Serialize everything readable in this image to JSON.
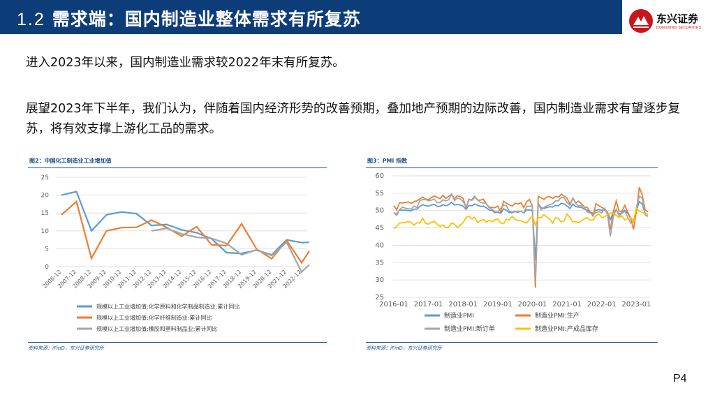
{
  "header": {
    "section_number": "1.2",
    "title": "需求端：国内制造业整体需求有所复苏"
  },
  "logo": {
    "name_cn": "东兴证券",
    "name_en": "DONGXING SECURITIES",
    "colors": {
      "red": "#c8161d",
      "navy": "#0d3d78"
    }
  },
  "body": {
    "paragraph_1": "进入2023年以来，国内制造业需求较2022年末有所复苏。",
    "paragraph_2": "展望2023年下半年，我们认为，伴随着国内经济形势的改善预期，叠加地产预期的边际改善，国内制造业需求有望逐步复苏，将有效支撑上游化工品的需求。"
  },
  "figure_left": {
    "caption": "图2：中国化工制造业工业增加值",
    "source": "资料来源：iFinD，东兴证券研究所"
  },
  "figure_right": {
    "caption": "图3：PMI 指数",
    "source": "资料来源：iFinD，东兴证券研究所"
  },
  "page_number": "P4",
  "chart_data": [
    {
      "type": "line",
      "title": "图2：中国化工制造业工业增加值",
      "ylim": [
        0,
        25
      ],
      "yticks": [
        0,
        5,
        10,
        15,
        20,
        25
      ],
      "x": [
        "2006-12",
        "2007-12",
        "2008-12",
        "2009-12",
        "2010-12",
        "2011-12",
        "2012-12",
        "2013-12",
        "2014-12",
        "2015-12",
        "2016-12",
        "2017-12",
        "2018-12",
        "2019-12",
        "2020-12",
        "2021-12",
        "2022-12"
      ],
      "grid": true,
      "legend_position": "bottom",
      "series": [
        {
          "name": "规模以上工业增加值:化学原料和化学制品制造业:累计同比",
          "color": "#5b9bd5",
          "points": [
            [
              0,
              20
            ],
            [
              1,
              21
            ],
            [
              2,
              10
            ],
            [
              3,
              14.5
            ],
            [
              4,
              15.3
            ],
            [
              5,
              14.8
            ],
            [
              6,
              11.5
            ],
            [
              7,
              11.8
            ],
            [
              8,
              10.3
            ],
            [
              9,
              9.5
            ],
            [
              10,
              7.8
            ],
            [
              11,
              3.9
            ],
            [
              12,
              3.7
            ],
            [
              13,
              4.6
            ],
            [
              14,
              3.3
            ],
            [
              15,
              7.5
            ],
            [
              16,
              6.7
            ],
            [
              16.5,
              6.8
            ]
          ]
        },
        {
          "name": "规模以上工业增加值:化学纤维制造业:累计同比",
          "color": "#ed7d31",
          "points": [
            [
              0,
              14.5
            ],
            [
              1,
              18.2
            ],
            [
              2,
              2.3
            ],
            [
              3,
              10
            ],
            [
              4,
              10.9
            ],
            [
              5,
              11
            ],
            [
              6,
              13
            ],
            [
              7,
              11
            ],
            [
              8,
              8.5
            ],
            [
              9,
              11.2
            ],
            [
              10,
              6.1
            ],
            [
              11,
              5.9
            ],
            [
              12,
              12
            ],
            [
              13,
              4.9
            ],
            [
              14,
              2.2
            ],
            [
              15,
              7.3
            ],
            [
              16,
              1.1
            ],
            [
              16.5,
              4.3
            ]
          ]
        },
        {
          "name": "规模以上工业增加值:橡胶和塑料制品业:累计同比",
          "color": "#a5a5a5",
          "points": [
            [
              6,
              10
            ],
            [
              7,
              10.7
            ],
            [
              8,
              9.2
            ],
            [
              9,
              8.2
            ],
            [
              10,
              7.9
            ],
            [
              11,
              6.5
            ],
            [
              12,
              3.3
            ],
            [
              13,
              4.7
            ],
            [
              14,
              3.1
            ],
            [
              15,
              6.8
            ],
            [
              16,
              -1.5
            ],
            [
              16.5,
              0.5
            ]
          ]
        }
      ]
    },
    {
      "type": "line",
      "title": "图3：PMI 指数",
      "ylim": [
        25,
        60
      ],
      "yticks": [
        25,
        30,
        35,
        40,
        45,
        50,
        55,
        60
      ],
      "xticks": [
        "2016-01",
        "2017-01",
        "2018-01",
        "2019-01",
        "2020-01",
        "2021-01",
        "2022-01",
        "2023-01"
      ],
      "grid": true,
      "legend_position": "bottom",
      "series": [
        {
          "name": "制造业PMI",
          "color": "#5b9bd5",
          "values": [
            49.4,
            49,
            50.2,
            50.1,
            50.1,
            50,
            49.9,
            50.4,
            50.4,
            51.2,
            51.7,
            51.4,
            51.3,
            51.6,
            51.8,
            51.2,
            51.2,
            51.7,
            51.4,
            51.7,
            52.4,
            51.6,
            51.8,
            51.6,
            51.3,
            50.3,
            51.5,
            51.4,
            51.9,
            51.5,
            51.2,
            51.3,
            50.8,
            50.2,
            50,
            49.4,
            49.5,
            49.2,
            50.5,
            50.1,
            49.4,
            49.4,
            49.7,
            49.5,
            49.8,
            49.3,
            50.2,
            50.2,
            50,
            35.7,
            52,
            50.8,
            50.6,
            50.9,
            51.1,
            51,
            51.5,
            51.4,
            52.1,
            51.9,
            51.3,
            50.6,
            51.9,
            51.1,
            51,
            50.9,
            50.4,
            50.1,
            49.6,
            49.2,
            50.1,
            50.3,
            50.1,
            50.2,
            49.5,
            47.4,
            49.6,
            50.2,
            49,
            49.4,
            50.1,
            49.2,
            48,
            47,
            50.1,
            52.6,
            51.9,
            49.2,
            48.8
          ]
        },
        {
          "name": "制造业PMI:生产",
          "color": "#ed7d31",
          "values": [
            51.4,
            50.2,
            52.3,
            52.2,
            52.3,
            52.5,
            52.1,
            52.6,
            52.8,
            53.3,
            53.9,
            53.3,
            53.1,
            53.7,
            54.2,
            53.8,
            53.4,
            54.4,
            53.5,
            54.1,
            54.7,
            53.4,
            54.3,
            54,
            53.5,
            50.7,
            53.1,
            53.1,
            54.1,
            53,
            53,
            53.3,
            52,
            51,
            50.9,
            50.8,
            51.3,
            49.5,
            52.7,
            52.1,
            51.7,
            51.3,
            52.1,
            51.9,
            52.3,
            50.8,
            52.6,
            53.2,
            51.3,
            27.8,
            54.1,
            53.7,
            53.2,
            53.9,
            54,
            53.5,
            54,
            53.9,
            54.7,
            54.2,
            53.5,
            51.9,
            53.6,
            52.2,
            52.7,
            51.9,
            51,
            50.9,
            49.5,
            48.4,
            52,
            51.4,
            50.9,
            50.4,
            49.5,
            44.4,
            49.7,
            52.8,
            49.8,
            49.8,
            51.5,
            49.6,
            47.8,
            44.6,
            49.8,
            56.7,
            54.6,
            50.2,
            49.6
          ]
        },
        {
          "name": "制造业PMI:新订单",
          "color": "#a5a5a5",
          "values": [
            49.5,
            48.6,
            50.2,
            51,
            50.7,
            50.5,
            50.4,
            51.3,
            50.9,
            52.8,
            53.2,
            53.2,
            52.8,
            53,
            53.3,
            52.3,
            52.3,
            53.1,
            52.8,
            53.1,
            54.8,
            52.9,
            53.6,
            53.4,
            52.6,
            51,
            53.3,
            52.9,
            53.8,
            53.2,
            52.3,
            52.2,
            52,
            50.8,
            50.4,
            49.7,
            49.6,
            50.6,
            51.6,
            51.4,
            49.8,
            49.6,
            49.8,
            49.7,
            49.8,
            49.3,
            51.3,
            51.2,
            51.4,
            29.3,
            52,
            50.2,
            50.9,
            51.4,
            51.7,
            52,
            52.8,
            52.8,
            53.9,
            53.6,
            52.3,
            51.5,
            53.6,
            52,
            51.3,
            51.5,
            50.9,
            49.6,
            49.3,
            48.8,
            49.4,
            49.7,
            49.3,
            50.7,
            48.8,
            42.6,
            48.2,
            50.4,
            48.5,
            49.2,
            49.8,
            48.1,
            46.4,
            46.6,
            50.9,
            54.1,
            53.6,
            48.8,
            48.3
          ]
        },
        {
          "name": "制造业PMI:产成品库存",
          "color": "#ffc000",
          "values": [
            44.8,
            45.4,
            46.4,
            46.5,
            46.6,
            46.8,
            46.6,
            45.8,
            46.5,
            46.4,
            47.8,
            46.3,
            46.1,
            46.6,
            46.9,
            46.1,
            45.4,
            45.9,
            45.1,
            45.2,
            46.4,
            46.1,
            45.1,
            45.8,
            46.5,
            48,
            48.4,
            47.6,
            48.1,
            46.6,
            47.1,
            47.4,
            46.7,
            47.2,
            46.8,
            47.3,
            47.6,
            46.4,
            46.2,
            47.5,
            47.3,
            48.3,
            47.5,
            47.1,
            47.1,
            46.7,
            46.4,
            47.6,
            48.4,
            45.8,
            48,
            47.9,
            48.9,
            48.1,
            47.6,
            46.4,
            48,
            47.7,
            46.7,
            47.1,
            49,
            48,
            46.7,
            46.8,
            46.5,
            47.1,
            47.6,
            48,
            47.2,
            47.3,
            48.5,
            49.1,
            48,
            48.2,
            48.9,
            49.3,
            49.3,
            48.6,
            48,
            48.5,
            47.3,
            47.7,
            48,
            46.7,
            50.6,
            49.8,
            49.5,
            49,
            48.9
          ]
        }
      ]
    }
  ]
}
